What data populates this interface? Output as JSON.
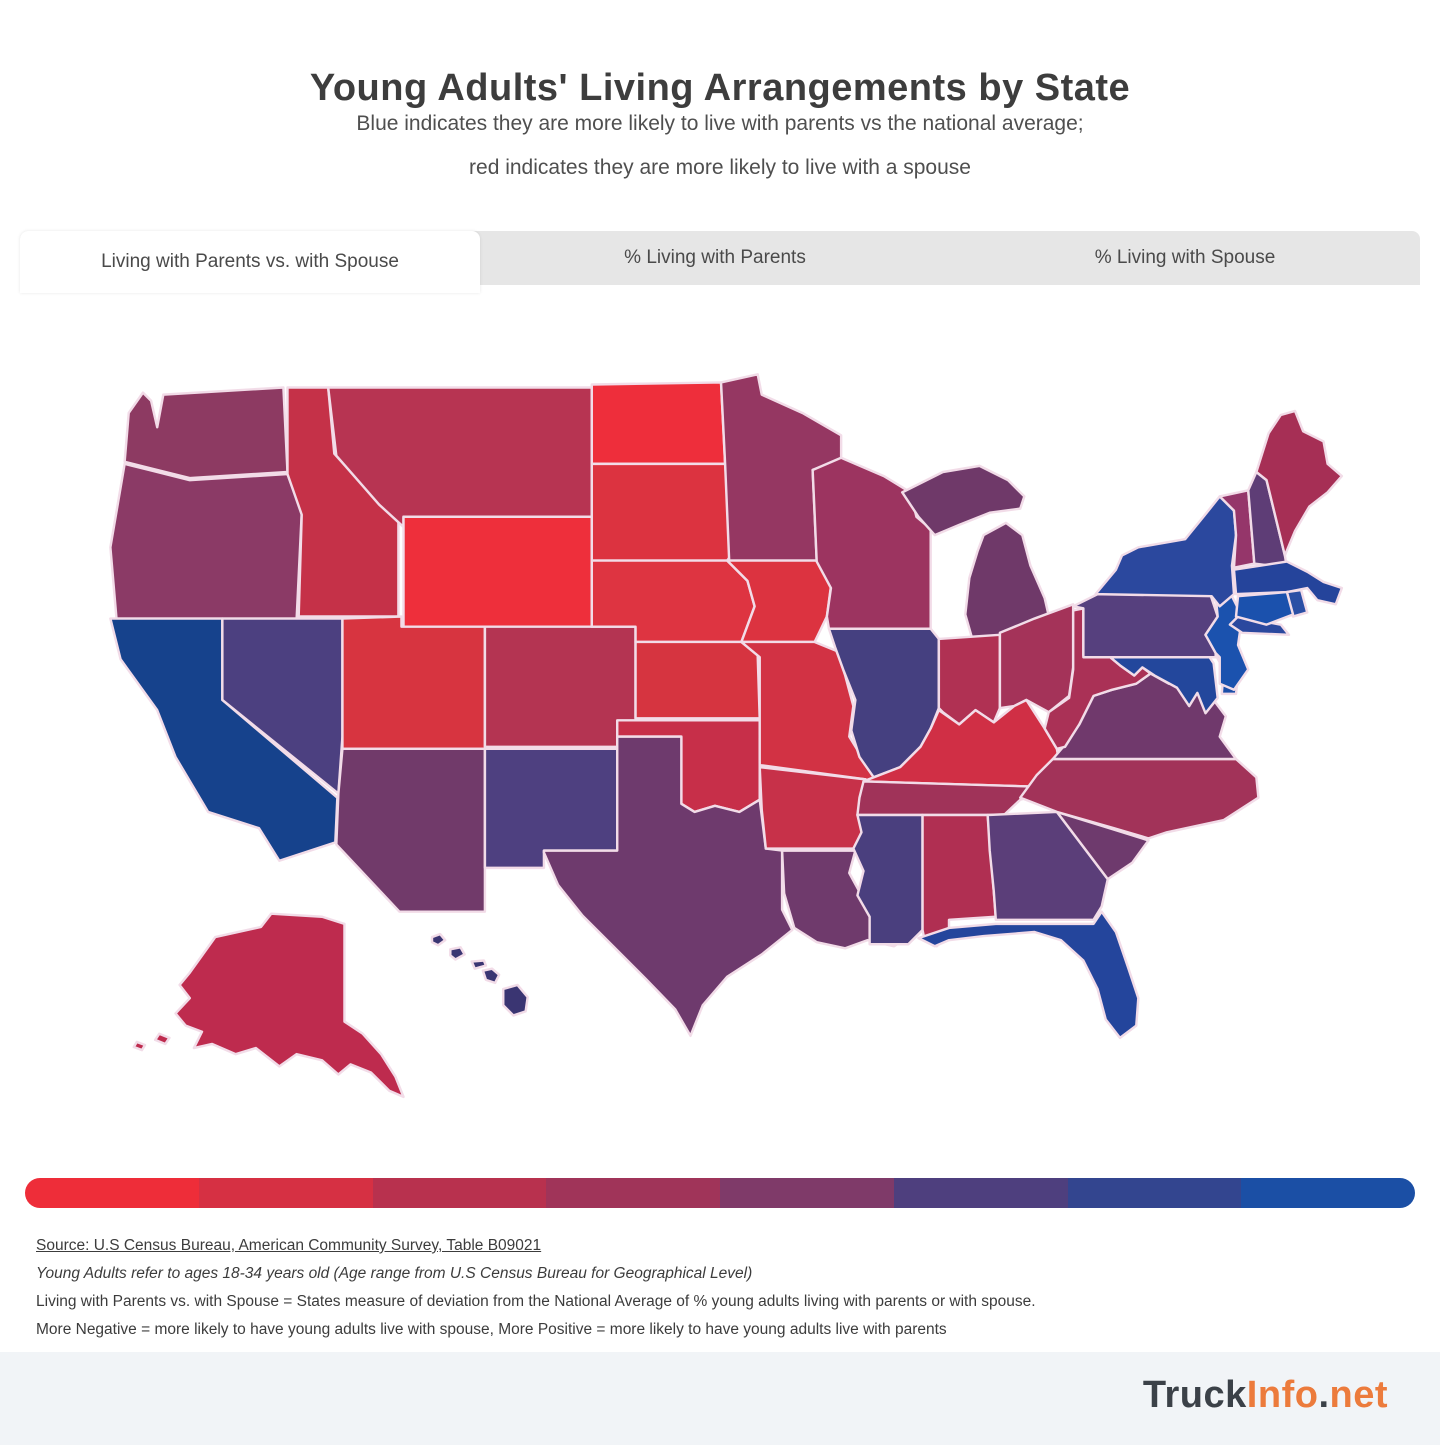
{
  "title": "Young Adults' Living Arrangements by State",
  "subtitle_line1": "Blue indicates they are more likely to live with parents vs the national average;",
  "subtitle_line2": "red indicates they are more likely to live with a spouse",
  "tabs": [
    {
      "label": "Living with Parents vs. with Spouse",
      "active": true
    },
    {
      "label": "% Living with Parents",
      "active": false
    },
    {
      "label": "% Living with Spouse",
      "active": false
    }
  ],
  "map": {
    "border_color": "#f2dce8",
    "background": "#ffffff"
  },
  "legend": {
    "colors": [
      "#ee2d39",
      "#d63043",
      "#b8314e",
      "#a03459",
      "#7f3a69",
      "#4e3f7e",
      "#33458f",
      "#1b4fa5"
    ],
    "meaning_left": "more likely to live with a spouse",
    "meaning_right": "more likely to live with parents"
  },
  "footnotes": [
    {
      "text": "Source: U.S Census Bureau, American Community Survey, Table B09021",
      "style": "source"
    },
    {
      "text": "Young Adults refer to ages 18-34 years old (Age range from U.S Census Bureau for Geographical Level)",
      "style": "italic"
    },
    {
      "text": "Living with Parents vs. with Spouse = States measure of deviation from the National Average of % young adults living with parents or with spouse.",
      "style": "normal"
    },
    {
      "text": "More Negative = more likely to have young adults live with spouse, More Positive = more likely to have young adults live with parents",
      "style": "normal"
    }
  ],
  "footer": {
    "brand_parts": [
      {
        "text": "Truck",
        "color": "#3b4148"
      },
      {
        "text": "Info",
        "color": "#ec7b3c"
      },
      {
        "text": ".",
        "color": "#3b4148"
      },
      {
        "text": "net",
        "color": "#ec7b3c"
      }
    ]
  },
  "chart_data": {
    "type": "choropleth",
    "region": "United States",
    "title": "Young Adults' Living Arrangements by State",
    "color_scale": {
      "type": "diverging",
      "red_end_meaning": "more likely to live with a spouse vs national average",
      "blue_end_meaning": "more likely to live with parents vs national average",
      "stops": [
        "#ee2d39",
        "#d63043",
        "#b8314e",
        "#a03459",
        "#7f3a69",
        "#4e3f7e",
        "#33458f",
        "#1b4fa5"
      ]
    },
    "states": [
      {
        "id": "WA",
        "name": "Washington",
        "color": "#8d3a62"
      },
      {
        "id": "OR",
        "name": "Oregon",
        "color": "#8b3a66"
      },
      {
        "id": "CA",
        "name": "California",
        "color": "#16428c"
      },
      {
        "id": "NV",
        "name": "Nevada",
        "color": "#4c4080"
      },
      {
        "id": "ID",
        "name": "Idaho",
        "color": "#c53148"
      },
      {
        "id": "MT",
        "name": "Montana",
        "color": "#b73452"
      },
      {
        "id": "WY",
        "name": "Wyoming",
        "color": "#ee2f3b"
      },
      {
        "id": "UT",
        "name": "Utah",
        "color": "#d73440"
      },
      {
        "id": "CO",
        "name": "Colorado",
        "color": "#b43452"
      },
      {
        "id": "AZ",
        "name": "Arizona",
        "color": "#713a6a"
      },
      {
        "id": "NM",
        "name": "New Mexico",
        "color": "#4e4080"
      },
      {
        "id": "ND",
        "name": "North Dakota",
        "color": "#ee2e3b"
      },
      {
        "id": "SD",
        "name": "South Dakota",
        "color": "#dc3340"
      },
      {
        "id": "NE",
        "name": "Nebraska",
        "color": "#de3441"
      },
      {
        "id": "KS",
        "name": "Kansas",
        "color": "#d63440"
      },
      {
        "id": "OK",
        "name": "Oklahoma",
        "color": "#c72f49"
      },
      {
        "id": "TX",
        "name": "Texas",
        "color": "#6e3a6d"
      },
      {
        "id": "MN",
        "name": "Minnesota",
        "color": "#953762"
      },
      {
        "id": "IA",
        "name": "Iowa",
        "color": "#dc3340"
      },
      {
        "id": "MO",
        "name": "Missouri",
        "color": "#d23244"
      },
      {
        "id": "AR",
        "name": "Arkansas",
        "color": "#c73149"
      },
      {
        "id": "LA",
        "name": "Louisiana",
        "color": "#6f3a6c"
      },
      {
        "id": "WI",
        "name": "Wisconsin",
        "color": "#9c3460"
      },
      {
        "id": "IL",
        "name": "Illinois",
        "color": "#454080"
      },
      {
        "id": "MI",
        "name": "Michigan",
        "color": "#6f3969"
      },
      {
        "id": "IN",
        "name": "Indiana",
        "color": "#b03153"
      },
      {
        "id": "OH",
        "name": "Ohio",
        "color": "#a43359"
      },
      {
        "id": "KY",
        "name": "Kentucky",
        "color": "#d02f45"
      },
      {
        "id": "TN",
        "name": "Tennessee",
        "color": "#a03359"
      },
      {
        "id": "MS",
        "name": "Mississippi",
        "color": "#4a3f7e"
      },
      {
        "id": "AL",
        "name": "Alabama",
        "color": "#b02f52"
      },
      {
        "id": "GA",
        "name": "Georgia",
        "color": "#5b3e79"
      },
      {
        "id": "FL",
        "name": "Florida",
        "color": "#24459c"
      },
      {
        "id": "SC",
        "name": "South Carolina",
        "color": "#6e3a6d"
      },
      {
        "id": "NC",
        "name": "North Carolina",
        "color": "#a23359"
      },
      {
        "id": "VA",
        "name": "Virginia",
        "color": "#70396c"
      },
      {
        "id": "WV",
        "name": "West Virginia",
        "color": "#aa3156"
      },
      {
        "id": "MD",
        "name": "Maryland",
        "color": "#23479c"
      },
      {
        "id": "DE",
        "name": "Delaware",
        "color": "#1d4fa8"
      },
      {
        "id": "NJ",
        "name": "New Jersey",
        "color": "#1b52ae"
      },
      {
        "id": "PA",
        "name": "Pennsylvania",
        "color": "#56407e"
      },
      {
        "id": "NY",
        "name": "New York",
        "color": "#2b489e"
      },
      {
        "id": "CT",
        "name": "Connecticut",
        "color": "#1b51ad"
      },
      {
        "id": "RI",
        "name": "Rhode Island",
        "color": "#2b4fa5"
      },
      {
        "id": "MA",
        "name": "Massachusetts",
        "color": "#25449b"
      },
      {
        "id": "VT",
        "name": "Vermont",
        "color": "#95366a"
      },
      {
        "id": "NH",
        "name": "New Hampshire",
        "color": "#5e3d76"
      },
      {
        "id": "ME",
        "name": "Maine",
        "color": "#a62f55"
      },
      {
        "id": "AK",
        "name": "Alaska",
        "color": "#be2b4e"
      },
      {
        "id": "HI",
        "name": "Hawaii",
        "color": "#3a3572"
      }
    ]
  }
}
